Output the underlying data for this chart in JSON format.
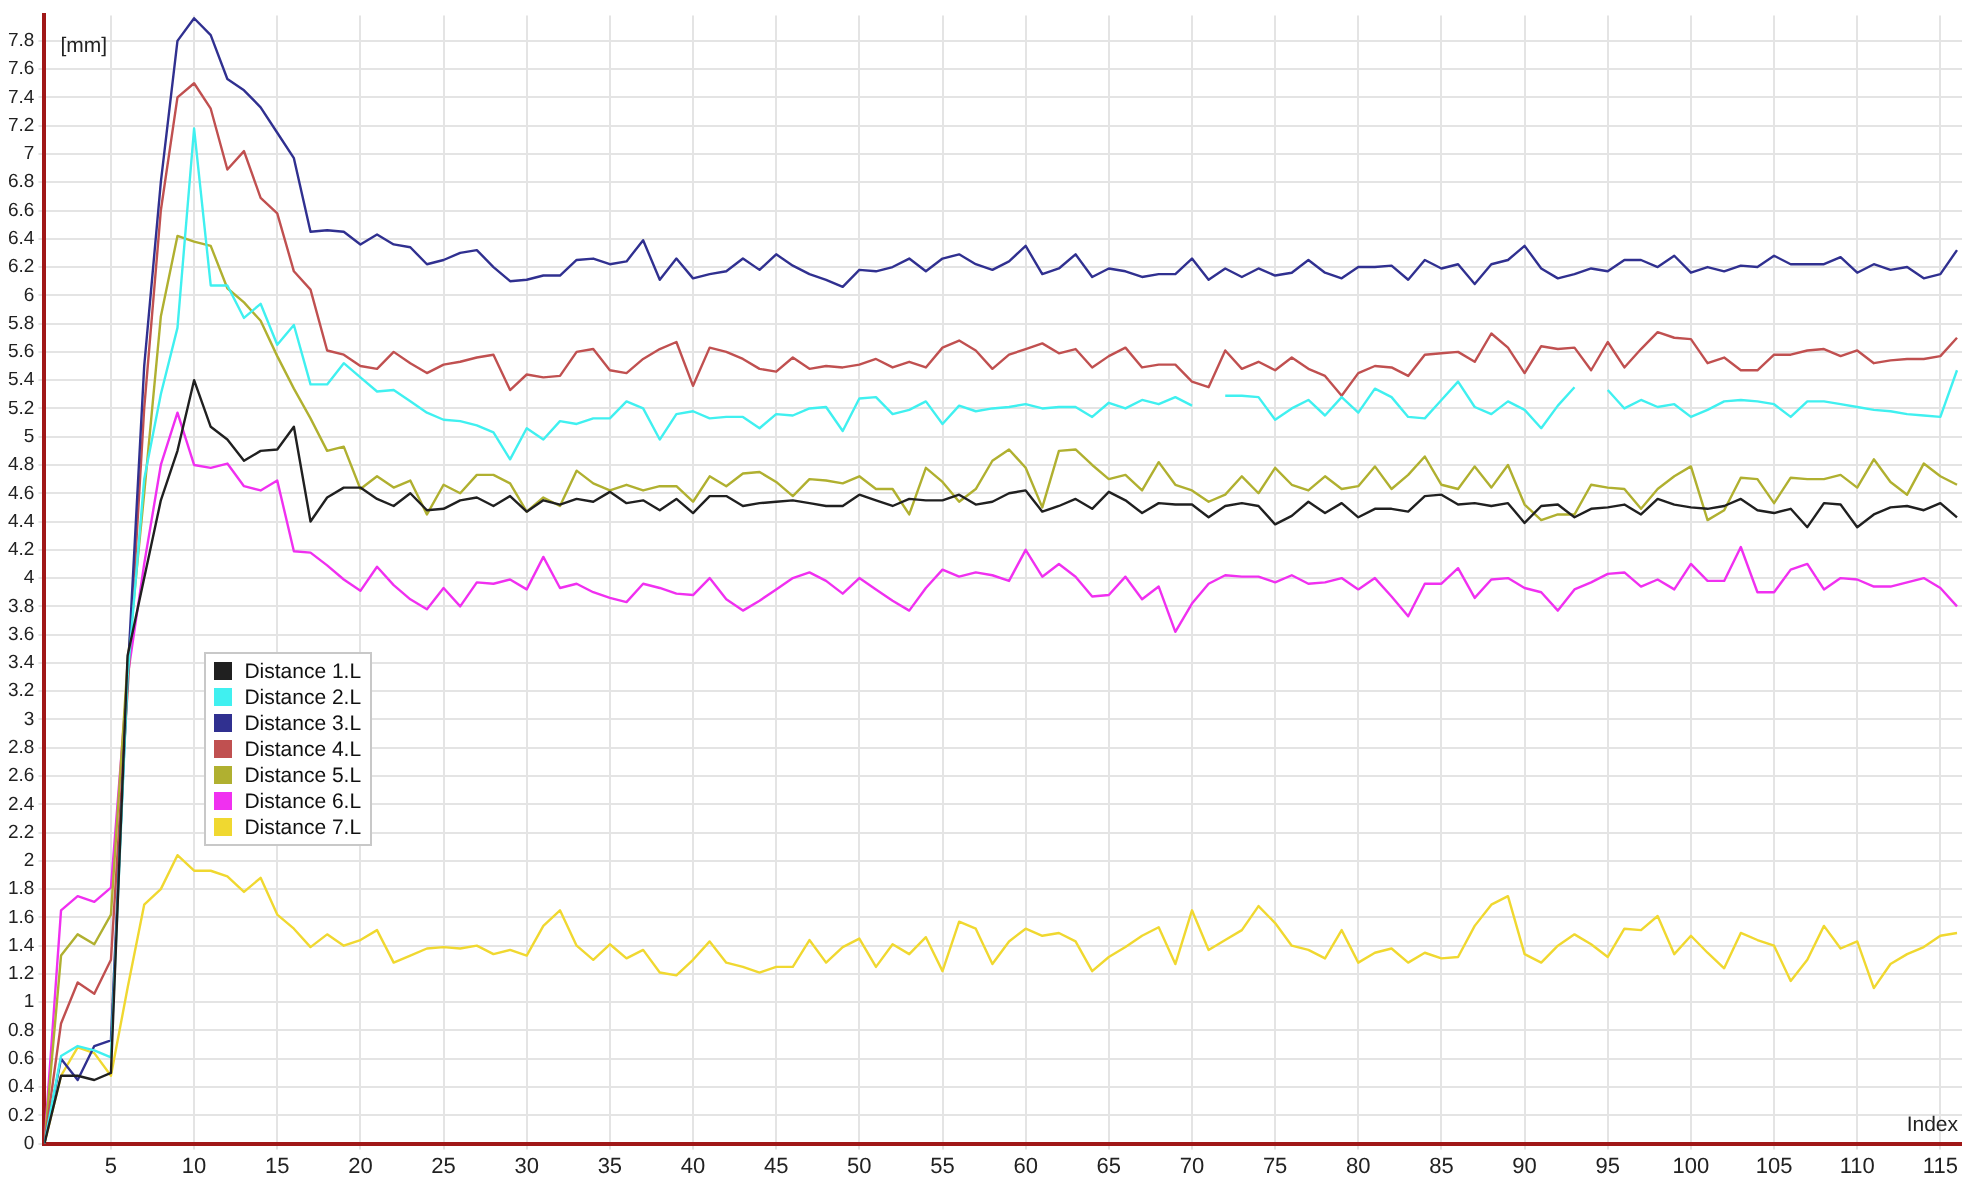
{
  "chart_data": {
    "type": "line",
    "xlabel": "Index",
    "ylabel": "[mm]",
    "legend": "left",
    "grid": true,
    "marker": "none",
    "line_style": "solid",
    "xlim": [
      1,
      116.3
    ],
    "xticks": [
      5,
      10,
      15,
      20,
      25,
      30,
      35,
      40,
      45,
      50,
      55,
      60,
      65,
      70,
      75,
      80,
      85,
      90,
      95,
      100,
      105,
      110,
      115
    ],
    "ylim": [
      0,
      7.98
    ],
    "yticks": [
      0,
      0.2,
      0.4,
      0.6,
      0.8,
      1,
      1.2,
      1.4,
      1.6,
      1.8,
      2,
      2.2,
      2.4,
      2.6,
      2.8,
      3,
      3.2,
      3.4,
      3.6,
      3.8,
      4,
      4.2,
      4.4,
      4.6,
      4.8,
      5,
      5.2,
      5.4,
      5.6,
      5.8,
      6,
      6.2,
      6.4,
      6.6,
      6.8,
      7,
      7.2,
      7.4,
      7.6,
      7.8
    ],
    "x": [
      1,
      2,
      3,
      4,
      5,
      6,
      7,
      8,
      9,
      10,
      11,
      12,
      13,
      14,
      15,
      16,
      17,
      18,
      19,
      20,
      21,
      22,
      23,
      24,
      25,
      26,
      27,
      28,
      29,
      30,
      31,
      32,
      33,
      34,
      35,
      36,
      37,
      38,
      39,
      40,
      41,
      42,
      43,
      44,
      45,
      46,
      47,
      48,
      49,
      50,
      51,
      52,
      53,
      54,
      55,
      56,
      57,
      58,
      59,
      60,
      61,
      62,
      63,
      64,
      65,
      66,
      67,
      68,
      69,
      70,
      71,
      72,
      73,
      74,
      75,
      76,
      77,
      78,
      79,
      80,
      81,
      82,
      83,
      84,
      85,
      86,
      87,
      88,
      89,
      90,
      91,
      92,
      93,
      94,
      95,
      96,
      97,
      98,
      99,
      100,
      101,
      102,
      103,
      104,
      105,
      106,
      107,
      108,
      109,
      110,
      111,
      112,
      113,
      114,
      115,
      116
    ],
    "series": [
      {
        "name": "Distance 1.L",
        "color": "#202020",
        "values": [
          0,
          0.48,
          0.48,
          0.45,
          0.5,
          3.45,
          4.0,
          4.55,
          4.9,
          5.4,
          5.07,
          4.98,
          4.83,
          4.9,
          4.91,
          5.07,
          4.4,
          4.57,
          4.64,
          4.64,
          4.56,
          4.51,
          4.6,
          4.48,
          4.49,
          4.55,
          4.57,
          4.51,
          4.58,
          4.47,
          4.55,
          4.52,
          4.56,
          4.54,
          4.61,
          4.53,
          4.55,
          4.48,
          4.56,
          4.46,
          4.58,
          4.58,
          4.51,
          4.53,
          4.54,
          4.55,
          4.53,
          4.51,
          4.51,
          4.59,
          4.55,
          4.51,
          4.56,
          4.55,
          4.55,
          4.59,
          4.52,
          4.54,
          4.6,
          4.62,
          4.47,
          4.51,
          4.56,
          4.49,
          4.61,
          4.55,
          4.46,
          4.53,
          4.52,
          4.52,
          4.43,
          4.51,
          4.53,
          4.51,
          4.38,
          4.44,
          4.54,
          4.46,
          4.53,
          4.43,
          4.49,
          4.49,
          4.47,
          4.58,
          4.59,
          4.52,
          4.53,
          4.51,
          4.53,
          4.39,
          4.51,
          4.52,
          4.43,
          4.49,
          4.5,
          4.52,
          4.45,
          4.56,
          4.52,
          4.5,
          4.49,
          4.51,
          4.56,
          4.48,
          4.46,
          4.49,
          4.36,
          4.53,
          4.52,
          4.36,
          4.45,
          4.5,
          4.51,
          4.48,
          4.53,
          4.43
        ]
      },
      {
        "name": "Distance 2.L",
        "color": "#40f0f0",
        "values": [
          0,
          0.62,
          0.69,
          0.66,
          0.61,
          3.3,
          4.7,
          5.3,
          5.77,
          7.18,
          6.07,
          6.07,
          5.84,
          5.94,
          5.65,
          5.79,
          5.37,
          5.37,
          5.52,
          5.42,
          5.32,
          5.33,
          5.25,
          5.17,
          5.12,
          5.11,
          5.08,
          5.03,
          4.84,
          5.06,
          4.98,
          5.11,
          5.09,
          5.13,
          5.13,
          5.25,
          5.2,
          4.98,
          5.16,
          5.18,
          5.13,
          5.14,
          5.14,
          5.06,
          5.16,
          5.15,
          5.2,
          5.21,
          5.04,
          5.27,
          5.28,
          5.16,
          5.19,
          5.25,
          5.09,
          5.22,
          5.18,
          5.2,
          5.21,
          5.23,
          5.2,
          5.21,
          5.21,
          5.14,
          5.24,
          5.2,
          5.26,
          5.23,
          5.28,
          5.22,
          null,
          5.29,
          5.29,
          5.28,
          5.12,
          5.2,
          5.26,
          5.15,
          5.28,
          5.17,
          5.34,
          5.28,
          5.14,
          5.13,
          5.26,
          5.39,
          5.21,
          5.16,
          5.25,
          5.19,
          5.06,
          5.22,
          5.35,
          null,
          5.33,
          5.2,
          5.26,
          5.21,
          5.23,
          5.14,
          5.19,
          5.25,
          5.26,
          5.25,
          5.23,
          5.14,
          5.25,
          5.25,
          5.23,
          5.21,
          5.19,
          5.18,
          5.16,
          5.15,
          5.14,
          5.47
        ]
      },
      {
        "name": "Distance 3.L",
        "color": "#303090",
        "values": [
          0,
          0.6,
          0.45,
          0.69,
          0.73,
          3.3,
          5.5,
          6.8,
          7.8,
          7.96,
          7.84,
          7.53,
          7.45,
          7.33,
          7.15,
          6.97,
          6.45,
          6.46,
          6.45,
          6.36,
          6.43,
          6.36,
          6.34,
          6.22,
          6.25,
          6.3,
          6.32,
          6.2,
          6.1,
          6.11,
          6.14,
          6.14,
          6.25,
          6.26,
          6.22,
          6.24,
          6.39,
          6.11,
          6.26,
          6.12,
          6.15,
          6.17,
          6.26,
          6.18,
          6.29,
          6.21,
          6.15,
          6.11,
          6.06,
          6.18,
          6.17,
          6.2,
          6.26,
          6.17,
          6.26,
          6.29,
          6.22,
          6.18,
          6.24,
          6.35,
          6.15,
          6.19,
          6.29,
          6.13,
          6.19,
          6.17,
          6.13,
          6.15,
          6.15,
          6.26,
          6.11,
          6.19,
          6.13,
          6.19,
          6.14,
          6.16,
          6.25,
          6.16,
          6.12,
          6.2,
          6.2,
          6.21,
          6.11,
          6.25,
          6.19,
          6.22,
          6.08,
          6.22,
          6.25,
          6.35,
          6.19,
          6.12,
          6.15,
          6.19,
          6.17,
          6.25,
          6.25,
          6.2,
          6.28,
          6.16,
          6.2,
          6.17,
          6.21,
          6.2,
          6.28,
          6.22,
          6.22,
          6.22,
          6.27,
          6.16,
          6.22,
          6.18,
          6.2,
          6.12,
          6.15,
          6.32
        ]
      },
      {
        "name": "Distance 4.L",
        "color": "#c05050",
        "values": [
          0,
          0.85,
          1.14,
          1.06,
          1.3,
          3.2,
          5.2,
          6.6,
          7.4,
          7.5,
          7.32,
          6.89,
          7.02,
          6.69,
          6.58,
          6.17,
          6.04,
          5.61,
          5.58,
          5.5,
          5.48,
          5.6,
          5.52,
          5.45,
          5.51,
          5.53,
          5.56,
          5.58,
          5.33,
          5.44,
          5.42,
          5.43,
          5.6,
          5.62,
          5.47,
          5.45,
          5.55,
          5.62,
          5.67,
          5.36,
          5.63,
          5.6,
          5.55,
          5.48,
          5.46,
          5.56,
          5.48,
          5.5,
          5.49,
          5.51,
          5.55,
          5.49,
          5.53,
          5.49,
          5.63,
          5.68,
          5.61,
          5.48,
          5.58,
          5.62,
          5.66,
          5.59,
          5.62,
          5.49,
          5.57,
          5.63,
          5.49,
          5.51,
          5.51,
          5.39,
          5.35,
          5.61,
          5.48,
          5.53,
          5.47,
          5.56,
          5.48,
          5.43,
          5.29,
          5.45,
          5.5,
          5.49,
          5.43,
          5.58,
          5.59,
          5.6,
          5.53,
          5.73,
          5.63,
          5.45,
          5.64,
          5.62,
          5.63,
          5.47,
          5.67,
          5.49,
          5.62,
          5.74,
          5.7,
          5.69,
          5.52,
          5.56,
          5.47,
          5.47,
          5.58,
          5.58,
          5.61,
          5.62,
          5.57,
          5.61,
          5.52,
          5.54,
          5.55,
          5.55,
          5.57,
          5.7
        ]
      },
      {
        "name": "Distance 5.L",
        "color": "#b0b030",
        "values": [
          0,
          1.33,
          1.48,
          1.41,
          1.62,
          3.4,
          4.6,
          5.85,
          6.42,
          6.38,
          6.35,
          6.05,
          5.95,
          5.82,
          5.57,
          5.34,
          5.13,
          4.9,
          4.93,
          4.63,
          4.72,
          4.64,
          4.69,
          4.45,
          4.66,
          4.6,
          4.73,
          4.73,
          4.67,
          4.47,
          4.57,
          4.51,
          4.76,
          4.67,
          4.62,
          4.66,
          4.62,
          4.65,
          4.65,
          4.54,
          4.72,
          4.65,
          4.74,
          4.75,
          4.68,
          4.58,
          4.7,
          4.69,
          4.67,
          4.72,
          4.63,
          4.63,
          4.45,
          4.78,
          4.68,
          4.54,
          4.63,
          4.83,
          4.91,
          4.78,
          4.5,
          4.9,
          4.91,
          4.8,
          4.7,
          4.73,
          4.62,
          4.82,
          4.66,
          4.62,
          4.54,
          4.59,
          4.72,
          4.6,
          4.78,
          4.66,
          4.62,
          4.72,
          4.63,
          4.65,
          4.79,
          4.63,
          4.73,
          4.86,
          4.66,
          4.63,
          4.79,
          4.64,
          4.8,
          4.52,
          4.41,
          4.45,
          4.45,
          4.66,
          4.64,
          4.63,
          4.49,
          4.63,
          4.72,
          4.79,
          4.41,
          4.48,
          4.71,
          4.7,
          4.53,
          4.71,
          4.7,
          4.7,
          4.73,
          4.64,
          4.84,
          4.68,
          4.59,
          4.81,
          4.72,
          4.66
        ]
      },
      {
        "name": "Distance 6.L",
        "color": "#f030f0",
        "values": [
          0,
          1.65,
          1.75,
          1.71,
          1.81,
          3.3,
          4.1,
          4.8,
          5.17,
          4.8,
          4.78,
          4.81,
          4.65,
          4.62,
          4.69,
          4.19,
          4.18,
          4.09,
          3.99,
          3.91,
          4.08,
          3.95,
          3.85,
          3.78,
          3.93,
          3.8,
          3.97,
          3.96,
          3.99,
          3.92,
          4.15,
          3.93,
          3.96,
          3.9,
          3.86,
          3.83,
          3.96,
          3.93,
          3.89,
          3.88,
          4.0,
          3.85,
          3.77,
          3.84,
          3.92,
          4.0,
          4.04,
          3.98,
          3.89,
          4.0,
          3.92,
          3.84,
          3.77,
          3.93,
          4.06,
          4.01,
          4.04,
          4.02,
          3.98,
          4.2,
          4.01,
          4.1,
          4.01,
          3.87,
          3.88,
          4.01,
          3.85,
          3.94,
          3.62,
          3.82,
          3.96,
          4.02,
          4.01,
          4.01,
          3.97,
          4.02,
          3.96,
          3.97,
          4.0,
          3.92,
          4.0,
          3.87,
          3.73,
          3.96,
          3.96,
          4.07,
          3.86,
          3.99,
          4.0,
          3.93,
          3.9,
          3.77,
          3.92,
          3.97,
          4.03,
          4.04,
          3.94,
          3.99,
          3.92,
          4.1,
          3.98,
          3.98,
          4.22,
          3.9,
          3.9,
          4.06,
          4.1,
          3.92,
          4.0,
          3.99,
          3.94,
          3.94,
          3.97,
          4.0,
          3.93,
          3.8
        ]
      },
      {
        "name": "Distance 7.L",
        "color": "#f0d830",
        "values": [
          0,
          0.48,
          0.68,
          0.64,
          0.48,
          1.1,
          1.69,
          1.8,
          2.04,
          1.93,
          1.93,
          1.89,
          1.78,
          1.88,
          1.62,
          1.52,
          1.39,
          1.48,
          1.4,
          1.44,
          1.51,
          1.28,
          1.33,
          1.38,
          1.39,
          1.38,
          1.4,
          1.34,
          1.37,
          1.33,
          1.54,
          1.65,
          1.4,
          1.3,
          1.41,
          1.31,
          1.37,
          1.21,
          1.19,
          1.3,
          1.43,
          1.28,
          1.25,
          1.21,
          1.25,
          1.25,
          1.44,
          1.28,
          1.39,
          1.45,
          1.25,
          1.41,
          1.34,
          1.46,
          1.22,
          1.57,
          1.52,
          1.27,
          1.43,
          1.52,
          1.47,
          1.49,
          1.43,
          1.22,
          1.32,
          1.39,
          1.47,
          1.53,
          1.27,
          1.65,
          1.37,
          1.44,
          1.51,
          1.68,
          1.56,
          1.4,
          1.37,
          1.31,
          1.51,
          1.28,
          1.35,
          1.38,
          1.28,
          1.35,
          1.31,
          1.32,
          1.54,
          1.69,
          1.75,
          1.34,
          1.28,
          1.4,
          1.48,
          1.41,
          1.32,
          1.52,
          1.51,
          1.61,
          1.34,
          1.47,
          1.35,
          1.24,
          1.49,
          1.44,
          1.4,
          1.15,
          1.3,
          1.54,
          1.38,
          1.43,
          1.1,
          1.27,
          1.34,
          1.39,
          1.47,
          1.49
        ]
      }
    ]
  }
}
